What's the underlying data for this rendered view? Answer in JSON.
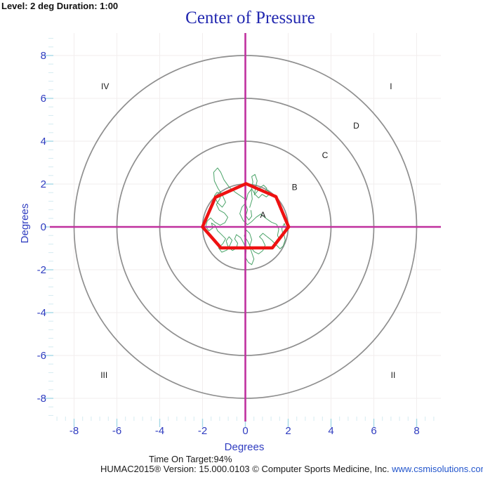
{
  "header": {
    "session_info": "Level: 2 deg Duration: 1:00",
    "title": "Center of Pressure"
  },
  "footer": {
    "time_on_target": "Time On Target:94%",
    "version_text": "HUMAC2015® Version: 15.000.0103 © Computer Sports Medicine, Inc. ",
    "link_text": "www.csmisolutions.com"
  },
  "colors": {
    "title_blue": "#2228b0",
    "axis_text_blue": "#2f3cc0",
    "crosshair_magenta": "#c0309e",
    "circle_gray": "#8f8f8f",
    "polygon_red": "#ee1111",
    "trace_green": "#4aa368",
    "tick_major": "#a6d9e6",
    "tick_minor": "#d5ebf1",
    "grid_faint": "#f2eeee",
    "label_black": "#1a1a1a",
    "link_blue": "#2255cc"
  },
  "chart_data": {
    "type": "scatter",
    "title": "Center of Pressure",
    "xlabel": "Degrees",
    "ylabel": "Degrees",
    "xlim": [
      -9.1,
      9.1
    ],
    "ylim": [
      -9.1,
      9.1
    ],
    "grid": true,
    "legend": false,
    "major_ticks": [
      -8,
      -6,
      -4,
      -2,
      0,
      2,
      4,
      6,
      8
    ],
    "minor_tick_step_deg": 0.4,
    "target_circles_deg": [
      2,
      4,
      6,
      8
    ],
    "zone_labels": [
      {
        "label": "A",
        "x": 0.82,
        "y": 0.55
      },
      {
        "label": "B",
        "x": 2.3,
        "y": 1.85
      },
      {
        "label": "C",
        "x": 3.72,
        "y": 3.35
      },
      {
        "label": "D",
        "x": 5.18,
        "y": 4.72
      }
    ],
    "quadrant_labels": [
      {
        "label": "I",
        "x": 6.8,
        "y": 6.55
      },
      {
        "label": "II",
        "x": 6.9,
        "y": -6.92
      },
      {
        "label": "III",
        "x": -6.6,
        "y": -6.92
      },
      {
        "label": "IV",
        "x": -6.55,
        "y": 6.55
      }
    ],
    "target_polygon_deg": [
      [
        0.03,
        2.02
      ],
      [
        1.43,
        1.41
      ],
      [
        2.02,
        0.0
      ],
      [
        1.26,
        -0.98
      ],
      [
        -1.14,
        -0.98
      ],
      [
        -2.0,
        0.0
      ],
      [
        -1.4,
        1.38
      ]
    ],
    "cop_trace_deg": [
      [
        0.2,
        0.9
      ],
      [
        0.32,
        1.3
      ],
      [
        0.28,
        1.7
      ],
      [
        0.35,
        2.1
      ],
      [
        0.3,
        2.35
      ],
      [
        0.45,
        2.45
      ],
      [
        0.55,
        2.15
      ],
      [
        0.48,
        1.85
      ],
      [
        0.42,
        1.5
      ],
      [
        0.55,
        1.65
      ],
      [
        0.7,
        1.85
      ],
      [
        0.85,
        1.95
      ],
      [
        1.0,
        1.8
      ],
      [
        0.9,
        1.6
      ],
      [
        1.05,
        1.72
      ],
      [
        1.15,
        1.55
      ],
      [
        0.98,
        1.4
      ],
      [
        0.78,
        1.52
      ],
      [
        0.62,
        1.35
      ],
      [
        0.45,
        1.52
      ],
      [
        0.3,
        1.78
      ],
      [
        0.12,
        1.55
      ],
      [
        0.05,
        1.25
      ],
      [
        -0.15,
        1.4
      ],
      [
        -0.45,
        1.6
      ],
      [
        -0.75,
        1.85
      ],
      [
        -1.0,
        2.2
      ],
      [
        -1.15,
        2.55
      ],
      [
        -1.3,
        2.75
      ],
      [
        -1.48,
        2.55
      ],
      [
        -1.45,
        2.15
      ],
      [
        -1.28,
        1.8
      ],
      [
        -1.08,
        1.5
      ],
      [
        -0.92,
        1.15
      ],
      [
        -1.08,
        0.92
      ],
      [
        -1.3,
        1.12
      ],
      [
        -1.45,
        1.45
      ],
      [
        -1.32,
        1.62
      ],
      [
        -1.12,
        1.55
      ],
      [
        -1.2,
        1.3
      ],
      [
        -1.35,
        1.05
      ],
      [
        -1.22,
        0.78
      ],
      [
        -0.98,
        0.65
      ],
      [
        -0.82,
        0.45
      ],
      [
        -0.95,
        0.2
      ],
      [
        -1.18,
        0.08
      ],
      [
        -1.42,
        0.22
      ],
      [
        -1.62,
        0.42
      ],
      [
        -1.78,
        0.28
      ],
      [
        -1.85,
        0.02
      ],
      [
        -1.7,
        -0.18
      ],
      [
        -1.52,
        -0.05
      ],
      [
        -1.58,
        0.18
      ],
      [
        -1.42,
        0.08
      ],
      [
        -1.3,
        -0.18
      ],
      [
        -1.12,
        -0.35
      ],
      [
        -0.92,
        -0.55
      ],
      [
        -1.05,
        -0.78
      ],
      [
        -1.25,
        -0.98
      ],
      [
        -1.1,
        -1.18
      ],
      [
        -0.86,
        -1.08
      ],
      [
        -0.72,
        -0.85
      ],
      [
        -0.62,
        -0.62
      ],
      [
        -0.76,
        -0.46
      ],
      [
        -0.9,
        -0.66
      ],
      [
        -0.8,
        -0.94
      ],
      [
        -0.6,
        -1.1
      ],
      [
        -0.42,
        -1.0
      ],
      [
        -0.36,
        -0.76
      ],
      [
        -0.5,
        -0.56
      ],
      [
        -0.42,
        -0.36
      ],
      [
        -0.22,
        -0.5
      ],
      [
        -0.06,
        -0.8
      ],
      [
        0.04,
        -1.1
      ],
      [
        0.0,
        -1.42
      ],
      [
        0.14,
        -1.66
      ],
      [
        0.3,
        -1.76
      ],
      [
        0.4,
        -1.5
      ],
      [
        0.3,
        -1.2
      ],
      [
        0.2,
        -0.9
      ],
      [
        0.3,
        -0.6
      ],
      [
        0.2,
        -0.3
      ],
      [
        0.05,
        -0.15
      ],
      [
        -0.05,
        -0.42
      ],
      [
        0.1,
        -0.66
      ],
      [
        0.26,
        -0.96
      ],
      [
        0.42,
        -1.16
      ],
      [
        0.62,
        -1.26
      ],
      [
        0.82,
        -1.1
      ],
      [
        0.92,
        -0.86
      ],
      [
        0.8,
        -0.6
      ],
      [
        0.66,
        -0.46
      ],
      [
        0.82,
        -0.3
      ],
      [
        1.02,
        -0.46
      ],
      [
        1.22,
        -0.62
      ],
      [
        1.42,
        -0.82
      ],
      [
        1.62,
        -1.02
      ],
      [
        1.76,
        -0.9
      ],
      [
        1.86,
        -0.62
      ],
      [
        1.8,
        -0.32
      ],
      [
        1.9,
        -0.1
      ],
      [
        1.82,
        0.16
      ],
      [
        1.7,
        -0.08
      ],
      [
        1.76,
        -0.4
      ],
      [
        1.6,
        -0.6
      ],
      [
        1.5,
        -0.4
      ],
      [
        1.56,
        -0.1
      ],
      [
        1.46,
        0.12
      ],
      [
        1.22,
        0.22
      ],
      [
        0.96,
        0.4
      ],
      [
        0.72,
        0.6
      ],
      [
        0.5,
        0.45
      ],
      [
        0.3,
        0.25
      ],
      [
        0.1,
        0.1
      ],
      [
        -0.1,
        0.3
      ],
      [
        -0.26,
        0.62
      ],
      [
        -0.16,
        0.92
      ],
      [
        0.0,
        1.1
      ],
      [
        0.1,
        0.8
      ],
      [
        0.02,
        0.52
      ],
      [
        0.16,
        0.32
      ],
      [
        0.3,
        0.5
      ],
      [
        0.26,
        0.78
      ]
    ],
    "time_on_target_pct": 94,
    "level_deg": 2,
    "duration": "1:00"
  }
}
